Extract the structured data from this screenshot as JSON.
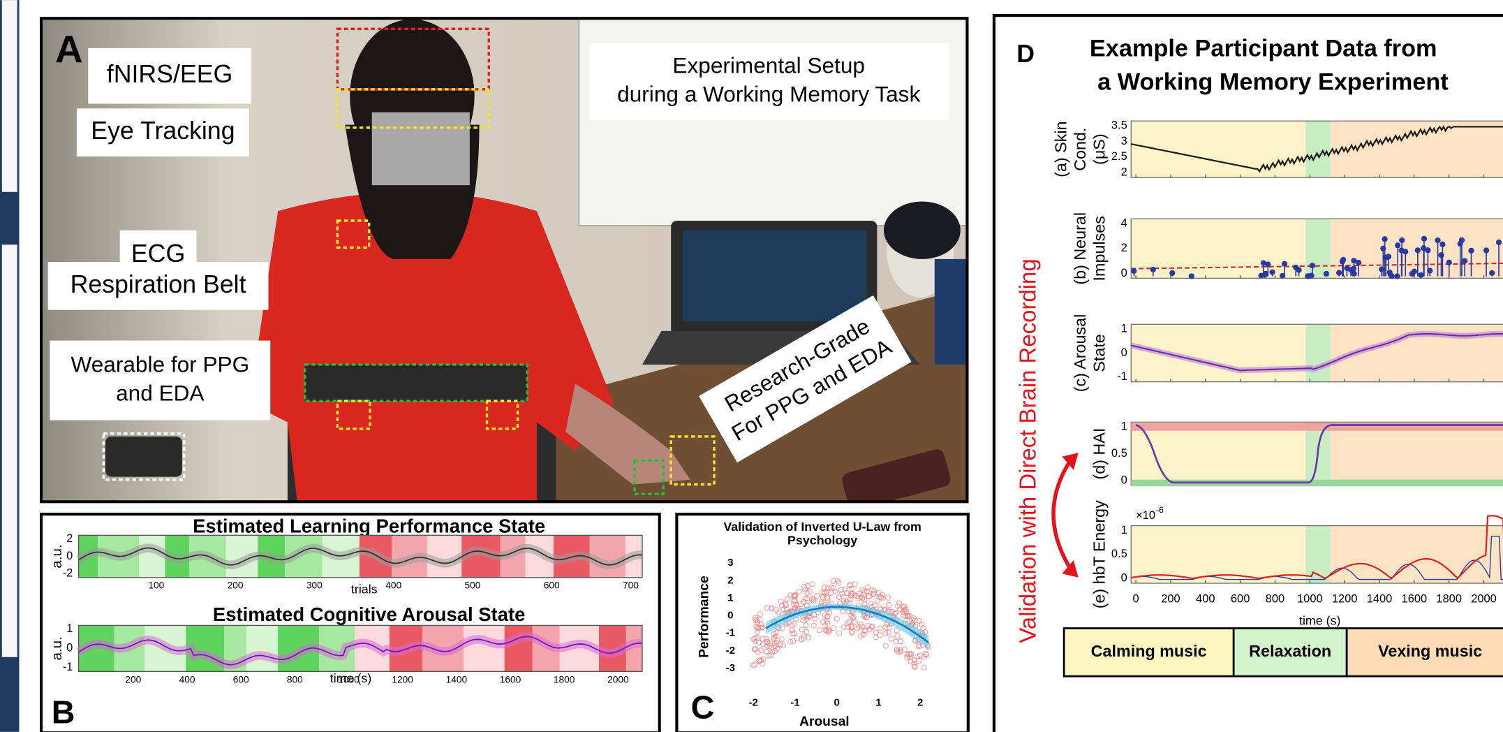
{
  "panel_a": {
    "letter": "A",
    "labels": [
      {
        "lines": [
          "fNIRS/EEG"
        ]
      },
      {
        "lines": [
          "Eye Tracking"
        ]
      },
      {
        "lines": [
          "ECG"
        ]
      },
      {
        "lines": [
          "Respiration Belt"
        ]
      },
      {
        "lines": [
          "Wearable for PPG",
          "and EDA"
        ]
      },
      {
        "lines": [
          "Experimental Setup",
          "during a Working Memory Task"
        ]
      },
      {
        "lines": [
          "Research-Grade",
          "For PPG and EDA"
        ]
      }
    ]
  },
  "panel_b": {
    "letter": "B",
    "performance": {
      "title": "Estimated Learning Performance State",
      "ylabel": "a.u.",
      "yticks": [
        2,
        0,
        -2
      ],
      "xticks": [
        100,
        200,
        300,
        400,
        500,
        600,
        700
      ],
      "xlabel": "trials"
    },
    "arousal": {
      "title": "Estimated Cognitive Arousal State",
      "ylabel": "a.u.",
      "yticks": [
        1,
        0,
        -1
      ],
      "xticks": [
        200,
        400,
        600,
        800,
        1000,
        1200,
        1400,
        1600,
        1800,
        2000
      ],
      "xlabel": "time (s)"
    }
  },
  "panel_c": {
    "letter": "C",
    "title": [
      "Validation of Inverted U-Law from",
      "Psychology"
    ],
    "ylabel": "Performance",
    "yticks": [
      3,
      2,
      1,
      0,
      -1,
      -2,
      -3
    ],
    "xticks": [
      -2,
      -1,
      0,
      1,
      2
    ],
    "xlabel": "Arousal"
  },
  "panel_d": {
    "letter": "D",
    "title": [
      "Example Participant Data from",
      "a Working Memory Experiment"
    ],
    "side_label": "Validation with Direct Brain Recording",
    "subplots": [
      {
        "ylabel": [
          "(a) Skin",
          "Cond.",
          "(μS)"
        ],
        "yticks": [
          3.5,
          3,
          2.5,
          2
        ]
      },
      {
        "ylabel": [
          "(b) Neural",
          "Impulses"
        ],
        "yticks": [
          4,
          2,
          0
        ]
      },
      {
        "ylabel": [
          "(c) Arousal",
          "State"
        ],
        "yticks": [
          1,
          0,
          -1
        ]
      },
      {
        "ylabel": [
          "(d) HAI"
        ],
        "yticks": [
          1,
          0.5,
          0
        ]
      },
      {
        "ylabel": [
          "(e) hbT Energy"
        ],
        "yticks": [
          1,
          0.5,
          0
        ]
      }
    ],
    "exponent": {
      "base": "×10",
      "power": "-6"
    },
    "xticks": [
      0,
      200,
      400,
      600,
      800,
      1000,
      1200,
      1400,
      1600,
      1800,
      2000
    ],
    "xlabel": "time (s)",
    "phases": [
      "Calming music",
      "Relaxation",
      "Vexing music"
    ]
  }
}
